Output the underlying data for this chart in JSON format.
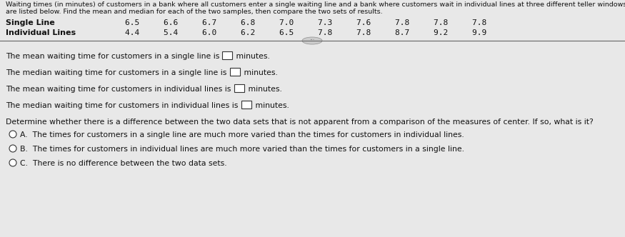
{
  "title_line1": "Waiting times (in minutes) of customers in a bank where all customers enter a single waiting line and a bank where customers wait in individual lines at three different teller windows",
  "title_line2": "are listed below. Find the mean and median for each of the two samples, then compare the two sets of results.",
  "single_line_label": "Single Line",
  "single_line_values": "6.5     6.6     6.7     6.8     7.0     7.3     7.6     7.8     7.8     7.8",
  "individual_lines_label": "Individual Lines",
  "individual_lines_values": "4.4     5.4     6.0     6.2     6.5     7.8     7.8     8.7     9.2     9.9",
  "q1_pre": "The mean waiting time for customers in a single line is ",
  "q1_post": " minutes.",
  "q2_pre": "The median waiting time for customers in a single line is ",
  "q2_post": " minutes.",
  "q3_pre": "The mean waiting time for customers in individual lines is ",
  "q3_post": " minutes.",
  "q4_pre": "The median waiting time for customers in individual lines is ",
  "q4_post": " minutes.",
  "determine_text": "Determine whether there is a difference between the two data sets that is not apparent from a comparison of the measures of center. If so, what is it?",
  "optA": "A.  The times for customers in a single line are much more varied than the times for customers in individual lines.",
  "optB": "B.  The times for customers in individual lines are much more varied than the times for customers in a single line.",
  "optC": "C.  There is no difference between the two data sets.",
  "bg_color": "#e8e8e8",
  "text_color": "#111111",
  "separator_color": "#666666",
  "font_size_title": 6.8,
  "font_size_table": 8.0,
  "font_size_questions": 7.8,
  "font_size_options": 7.8
}
